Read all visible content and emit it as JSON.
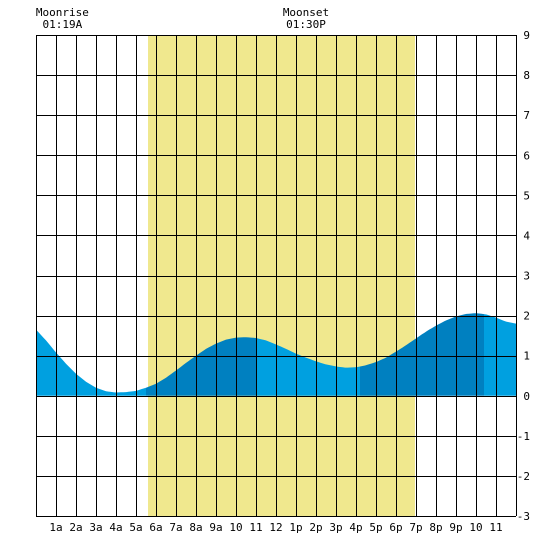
{
  "chart_data": {
    "type": "area",
    "title": "",
    "xlabel": "",
    "ylabel": "",
    "xlim": [
      0,
      24
    ],
    "ylim": [
      -3,
      9
    ],
    "grid": true,
    "hour_tick_labels": [
      "1a",
      "2a",
      "3a",
      "4a",
      "5a",
      "6a",
      "7a",
      "8a",
      "9a",
      "10",
      "11",
      "12",
      "1p",
      "2p",
      "3p",
      "4p",
      "5p",
      "6p",
      "7p",
      "8p",
      "9p",
      "10",
      "11"
    ],
    "y_tick_labels": [
      "9",
      "8",
      "7",
      "6",
      "5",
      "4",
      "3",
      "2",
      "1",
      "0",
      "-1",
      "-2",
      "-3"
    ],
    "daylight": {
      "start_hour": 5.6,
      "end_hour": 18.95
    },
    "annotations": [
      {
        "label": "Moonrise",
        "time": "01:19A",
        "hour": 1.32
      },
      {
        "label": "Moonset",
        "time": "01:30P",
        "hour": 13.5
      }
    ],
    "tide_series": {
      "x": [
        0,
        0.5,
        1,
        1.5,
        2,
        2.5,
        3,
        3.5,
        4,
        4.5,
        5,
        5.5,
        6,
        6.5,
        7,
        7.5,
        8,
        8.5,
        9,
        9.5,
        10,
        10.5,
        11,
        11.5,
        12,
        12.5,
        13,
        13.5,
        14,
        14.5,
        15,
        15.5,
        16,
        16.5,
        17,
        17.5,
        18,
        18.5,
        19,
        19.5,
        20,
        20.5,
        21,
        21.5,
        22,
        22.5,
        23,
        23.5,
        24
      ],
      "y": [
        1.65,
        1.38,
        1.08,
        0.8,
        0.55,
        0.35,
        0.2,
        0.11,
        0.08,
        0.09,
        0.12,
        0.2,
        0.3,
        0.45,
        0.63,
        0.82,
        1.0,
        1.17,
        1.3,
        1.4,
        1.45,
        1.46,
        1.44,
        1.38,
        1.28,
        1.17,
        1.05,
        0.95,
        0.86,
        0.78,
        0.73,
        0.7,
        0.71,
        0.76,
        0.84,
        0.95,
        1.1,
        1.26,
        1.43,
        1.6,
        1.75,
        1.88,
        1.98,
        2.04,
        2.06,
        2.03,
        1.95,
        1.85,
        1.8
      ]
    },
    "tide_segment_bounds": [
      0,
      5.5,
      11,
      16.2,
      22.4,
      24
    ],
    "colors": {
      "daylight": "#f0e88e",
      "tide_light": "#00a0e0",
      "tide_dark": "#0080c0",
      "grid": "#000000",
      "background": "#ffffff"
    }
  }
}
